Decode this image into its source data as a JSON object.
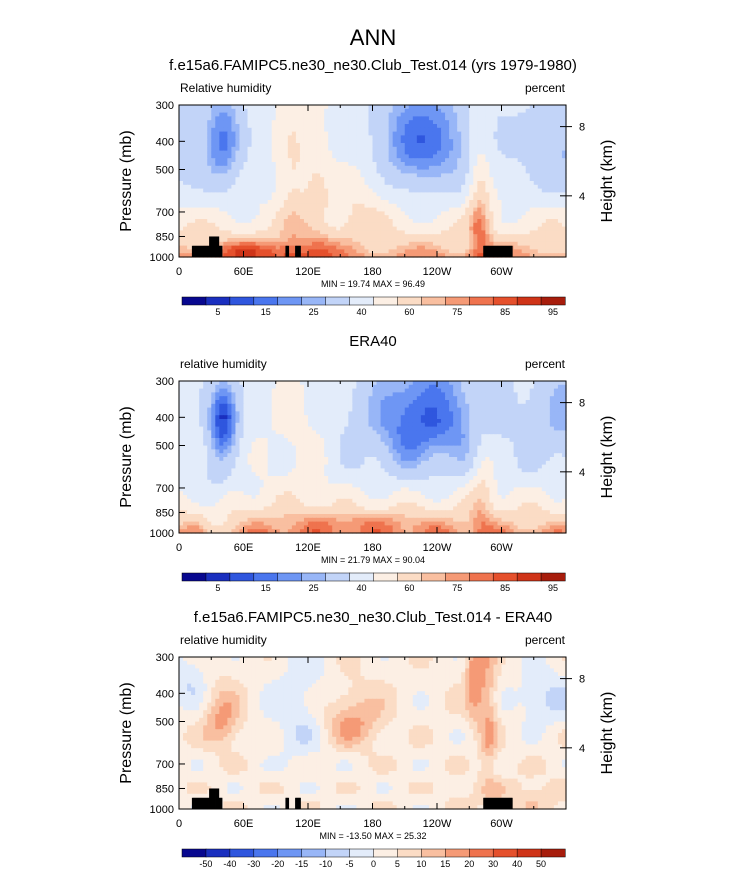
{
  "figure_title": "ANN",
  "chart_data": [
    {
      "type": "heatmap",
      "title": "f.e15a6.FAMIPC5.ne30_ne30.Club_Test.014 (yrs 1979-1980)",
      "left_label": "Relative humidity",
      "right_label": "percent",
      "ylabel": "Pressure (mb)",
      "ylabel_right": "Height (km)",
      "x_ticks": [
        "0",
        "60E",
        "120E",
        "180",
        "120W",
        "60W"
      ],
      "x_tick_positions_deg": [
        0,
        60,
        120,
        180,
        240,
        300
      ],
      "xlim_deg": [
        0,
        360
      ],
      "y_ticks": [
        "300",
        "400",
        "500",
        "700",
        "850",
        "1000"
      ],
      "y_tick_values_mb": [
        300,
        400,
        500,
        700,
        850,
        1000
      ],
      "ylim_mb": [
        300,
        1000
      ],
      "y_scale": "log",
      "right_ticks": [
        "8",
        "4"
      ],
      "right_tick_values_mb": [
        356,
        616
      ],
      "stats": "MIN = 19.74 MAX = 96.49",
      "min": 19.74,
      "max": 96.49,
      "colorbar": {
        "labels": [
          "5",
          "15",
          "25",
          "40",
          "60",
          "75",
          "85",
          "95"
        ],
        "levels": [
          0,
          5,
          10,
          15,
          20,
          25,
          30,
          40,
          50,
          60,
          70,
          75,
          80,
          85,
          90,
          95,
          100
        ],
        "colors": [
          "#08088f",
          "#1a2fbf",
          "#2f56de",
          "#4a76ee",
          "#6e96f4",
          "#98b6f7",
          "#c2d4f8",
          "#e3ecfa",
          "#fcefe4",
          "#fbdcc5",
          "#f9bfa0",
          "#f59a76",
          "#ef734e",
          "#e5502c",
          "#cf3418",
          "#a71d0c"
        ]
      }
    },
    {
      "type": "heatmap",
      "title": "ERA40",
      "left_label": "relative humidity",
      "right_label": "percent",
      "ylabel": "Pressure (mb)",
      "ylabel_right": "Height (km)",
      "x_ticks": [
        "0",
        "60E",
        "120E",
        "180",
        "120W",
        "60W"
      ],
      "x_tick_positions_deg": [
        0,
        60,
        120,
        180,
        240,
        300
      ],
      "xlim_deg": [
        0,
        360
      ],
      "y_ticks": [
        "300",
        "400",
        "500",
        "700",
        "850",
        "1000"
      ],
      "y_tick_values_mb": [
        300,
        400,
        500,
        700,
        850,
        1000
      ],
      "ylim_mb": [
        300,
        1000
      ],
      "y_scale": "log",
      "right_ticks": [
        "8",
        "4"
      ],
      "right_tick_values_mb": [
        356,
        616
      ],
      "stats": "MIN = 21.79 MAX = 90.04",
      "min": 21.79,
      "max": 90.04,
      "colorbar": {
        "labels": [
          "5",
          "15",
          "25",
          "40",
          "60",
          "75",
          "85",
          "95"
        ],
        "levels": [
          0,
          5,
          10,
          15,
          20,
          25,
          30,
          40,
          50,
          60,
          70,
          75,
          80,
          85,
          90,
          95,
          100
        ],
        "colors": [
          "#08088f",
          "#1a2fbf",
          "#2f56de",
          "#4a76ee",
          "#6e96f4",
          "#98b6f7",
          "#c2d4f8",
          "#e3ecfa",
          "#fcefe4",
          "#fbdcc5",
          "#f9bfa0",
          "#f59a76",
          "#ef734e",
          "#e5502c",
          "#cf3418",
          "#a71d0c"
        ]
      }
    },
    {
      "type": "heatmap",
      "title": "f.e15a6.FAMIPC5.ne30_ne30.Club_Test.014 - ERA40",
      "left_label": "relative humidity",
      "right_label": "percent",
      "ylabel": "Pressure (mb)",
      "ylabel_right": "Height (km)",
      "x_ticks": [
        "0",
        "60E",
        "120E",
        "180",
        "120W",
        "60W"
      ],
      "x_tick_positions_deg": [
        0,
        60,
        120,
        180,
        240,
        300
      ],
      "xlim_deg": [
        0,
        360
      ],
      "y_ticks": [
        "300",
        "400",
        "500",
        "700",
        "850",
        "1000"
      ],
      "y_tick_values_mb": [
        300,
        400,
        500,
        700,
        850,
        1000
      ],
      "ylim_mb": [
        300,
        1000
      ],
      "y_scale": "log",
      "right_ticks": [
        "8",
        "4"
      ],
      "right_tick_values_mb": [
        356,
        616
      ],
      "stats": "MIN = -13.50 MAX = 25.32",
      "min": -13.5,
      "max": 25.32,
      "colorbar": {
        "labels": [
          "-50",
          "-40",
          "-30",
          "-20",
          "-15",
          "-10",
          "-5",
          "0",
          "5",
          "10",
          "15",
          "20",
          "30",
          "40",
          "50"
        ],
        "levels": [
          -60,
          -50,
          -40,
          -30,
          -20,
          -15,
          -10,
          -5,
          0,
          5,
          10,
          15,
          20,
          30,
          40,
          50,
          60
        ],
        "colors": [
          "#08088f",
          "#1a2fbf",
          "#2f56de",
          "#4a76ee",
          "#6e96f4",
          "#98b6f7",
          "#c2d4f8",
          "#e3ecfa",
          "#fcefe4",
          "#fbdcc5",
          "#f9bfa0",
          "#f59a76",
          "#ef734e",
          "#e5502c",
          "#cf3418",
          "#a71d0c"
        ]
      }
    }
  ]
}
